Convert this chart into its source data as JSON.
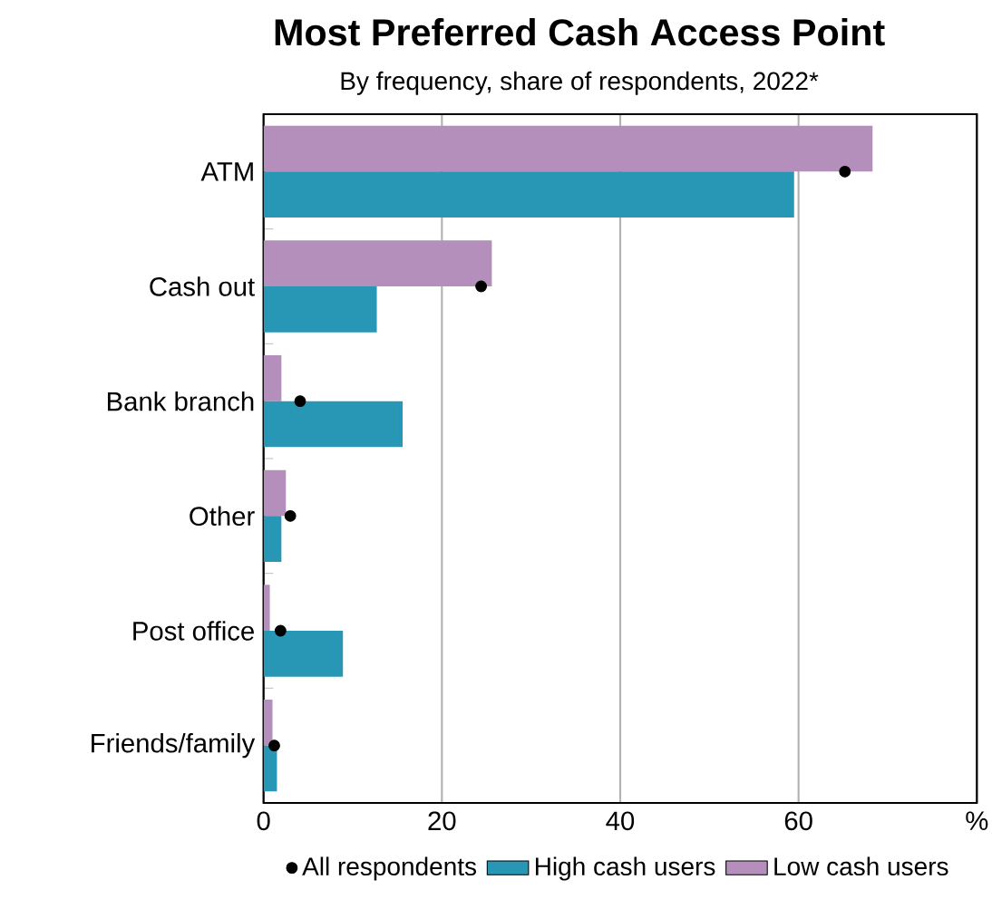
{
  "chart_data": {
    "type": "bar",
    "orientation": "horizontal",
    "title": "Most Preferred Cash Access Point",
    "subtitle": "By frequency, share of respondents, 2022*",
    "categories": [
      "ATM",
      "Cash out",
      "Bank branch",
      "Other",
      "Post office",
      "Friends/family"
    ],
    "series": [
      {
        "name": "All respondents",
        "type": "scatter",
        "color": "#000000",
        "x": [
          "ATM",
          "Cash out",
          "Bank branch",
          "Other",
          "Post office",
          "Friends/family"
        ],
        "values": [
          65.2,
          24.4,
          4.1,
          3.0,
          1.9,
          1.2
        ]
      },
      {
        "name": "High cash users",
        "color": "#2896b5",
        "values": [
          59.5,
          12.7,
          15.6,
          2.0,
          8.9,
          1.5
        ]
      },
      {
        "name": "Low cash users",
        "color": "#b48fbb",
        "values": [
          68.3,
          25.6,
          2.0,
          2.5,
          0.7,
          1.0
        ]
      }
    ],
    "xlim": [
      0,
      80
    ],
    "xticks": [
      0,
      20,
      40,
      60,
      {
        "value": 80,
        "label": "%"
      }
    ],
    "grid": "x",
    "legend": "bottom"
  }
}
